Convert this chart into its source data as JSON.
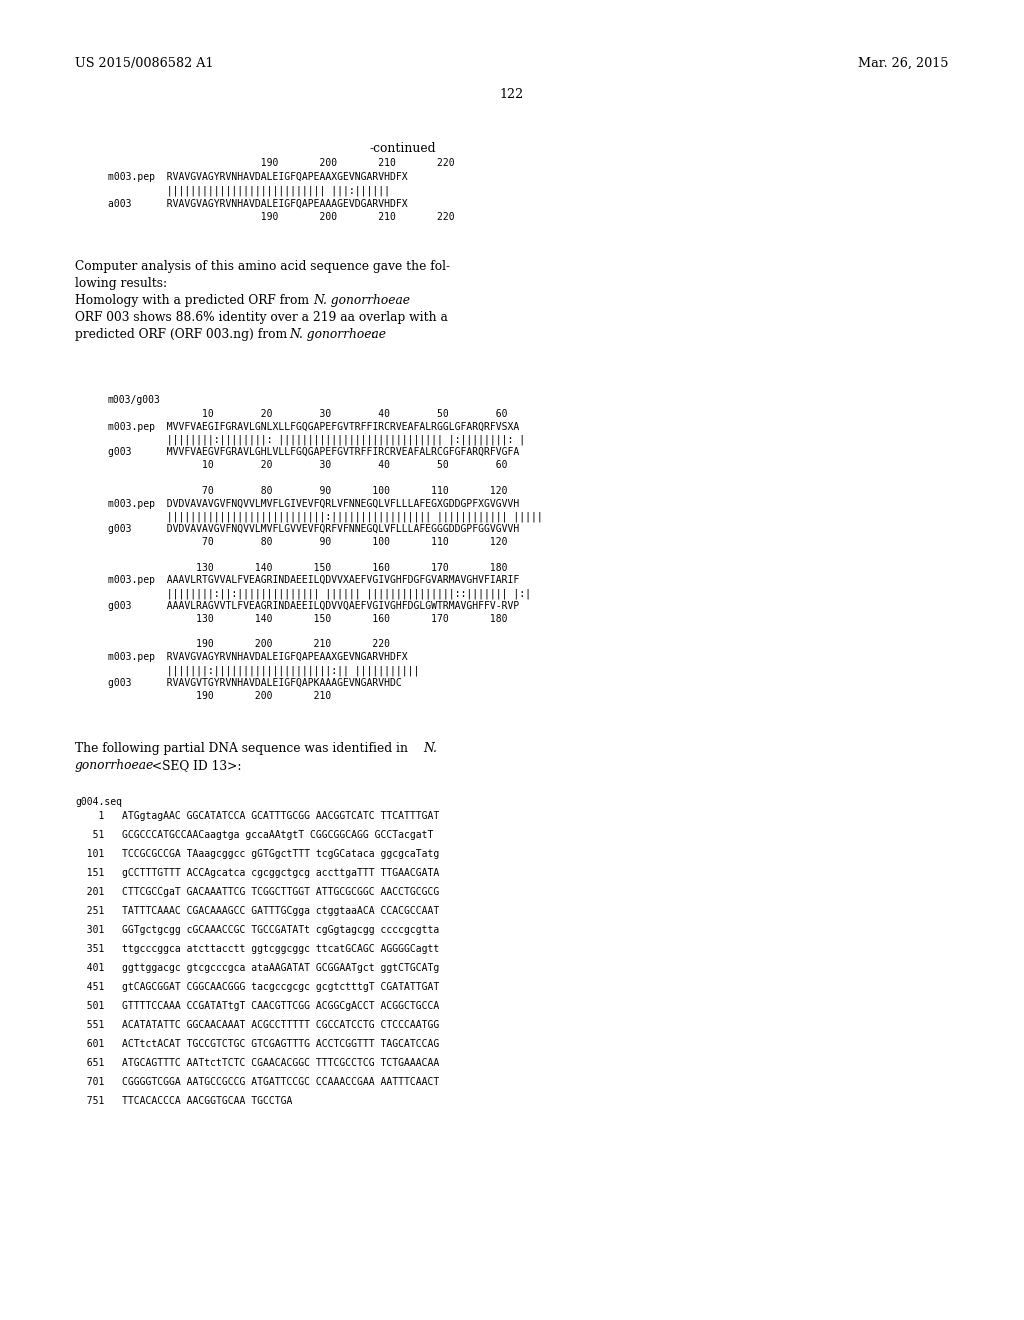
{
  "background_color": "#ffffff",
  "left_header": "US 2015/0086582 A1",
  "right_header": "Mar. 26, 2015",
  "page_number": "122",
  "continued_label": "-continued",
  "mono_fs": 7.0,
  "body_fs": 8.8,
  "header_fs": 9.2,
  "seq1_lines": [
    "                          190       200       210       220",
    "m003.pep  RVAVGVAGYRVNHAVDALEIGFQAPEAAXGEVNGARVHDFX",
    "          ||||||||||||||||||||||||||| |||:||||||",
    "a003      RVAVGVAGYRVNHAVDALEIGFQAPEAAAGEVDGARVHDFX",
    "                          190       200       210       220"
  ],
  "seq2_label": "m003/g003",
  "seq2_lines": [
    "                10        20        30        40        50        60",
    "m003.pep  MVVFVAEGIFGRAVLGNLXLLFGQGAPEFGVTRFFIRCRVEAFALRGGLGFARQRFVSXA",
    "          ||||||||:||||||||: |||||||||||||||||||||||||||| |:||||||||: |",
    "g003      MVVFVAEGVFGRAVLGHLVLLFGQGAPEFGVTRFFIRCRVEAFALRCGFGFARQRFVGFA",
    "                10        20        30        40        50        60",
    "",
    "                70        80        90       100       110       120",
    "m003.pep  DVDVAVAVGVFNQVVLMVFLGIVEVFQRLVFNNEGQLVFLLLAFEGXGDDGPFXGVGVVH",
    "          |||||||||||||||||||||||||||:||||||||||||||||| |||||||||||| |||||",
    "g003      DVDVAVAVGVFNQVVLMVFLGVVEVFQRFVFNNEGQLVFLLLAFEGGGDDGPFGGVGVVH",
    "                70        80        90       100       110       120",
    "",
    "               130       140       150       160       170       180",
    "m003.pep  AAAVLRTGVVALFVEAGRINDAEEILQDVVXAEFVGIVGHFDGFGVARMAVGHVFIARIF",
    "          ||||||||:||:|||||||||||||| |||||| |||||||||||||||::||||||| |:|",
    "g003      AAAVLRAGVVTLFVEAGRINDAEEILQDVVQAEFVGIVGHFDGLGWTRMAVGHFFV-RVP",
    "               130       140       150       160       170       180",
    "",
    "               190       200       210       220",
    "m003.pep  RVAVGVAGYRVNHAVDALEIGFQAPEAAXGEVNGARVHDFX",
    "          |||||||:||||||||||||||||||||:|| |||||||||||",
    "g003      RVAVGVTGYRVNHAVDALEIGFQAPKAAAGEVNGARVHDC",
    "               190       200       210"
  ],
  "para_lines": [
    "Computer analysis of this amino acid sequence gave the fol-",
    "lowing results:",
    "Homology with a predicted ORF from ",
    "N. gonorrhoeae",
    "ORF 003 shows 88.6% identity over a 219 aa overlap with a",
    "predicted ORF (ORF 003.ng) from ",
    "N. gonorrhoeae",
    ":"
  ],
  "dna_label": "g004.seq",
  "dna_lines": [
    "    1   ATGgtagAAC GGCATATCCA GCATTTGCGG AACGGTCATC TTCATTTGAT",
    "   51   GCGCCCATGCCAACaagtga gccaAAtgtT CGGCGGCAGG GCCTacgatT",
    "  101   TCCGCGCCGA TAaagcggcc gGTGgctTTT tcgGCataca ggcgcaTatg",
    "  151   gCCTTTGTTT ACCAgcatca cgcggctgcg accttgaTTT TTGAACGATA",
    "  201   CTTCGCCgaT GACAAATTCG TCGGCTTGGT ATTGCGCGGC AACCTGCGCG",
    "  251   TATTTCAAAC CGACAAAGCC GATTTGCgga ctggtaaACA CCACGCCAAT",
    "  301   GGTgctgcgg cGCAAACCGC TGCCGATATt cgGgtagcgg ccccgcgtta",
    "  351   ttgcccggca atcttacctt ggtcggcggc ttcatGCAGC AGGGGCagtt",
    "  401   ggttggacgc gtcgcccgca ataAAGATAT GCGGAATgct ggtCTGCATg",
    "  451   gtCAGCGGAT CGGCAACGGG tacgccgcgc gcgtctttgT CGATATTGAT",
    "  501   GTTTTCCAAA CCGATATtgT CAACGTTCGG ACGGCgACCT ACGGCTGCCA",
    "  551   ACATATATTC GGCAACAAAT ACGCCTTTTT CGCCATCCTG CTCCCAATGG",
    "  601   ACTtctACAT TGCCGTCTGC GTCGAGTTTG ACCTCGGTTT TAGCATCCAG",
    "  651   ATGCAGTTTC AATtctTCTC CGAACACGGC TTTCGCCTCG TCTGAAACAA",
    "  701   CGGGGTCGGA AATGCCGCCG ATGATTCCGC CCAAACCGAA AATTTCAACT",
    "  751   TTCACACCCA AACGGTGCAA TGCCTGA"
  ]
}
